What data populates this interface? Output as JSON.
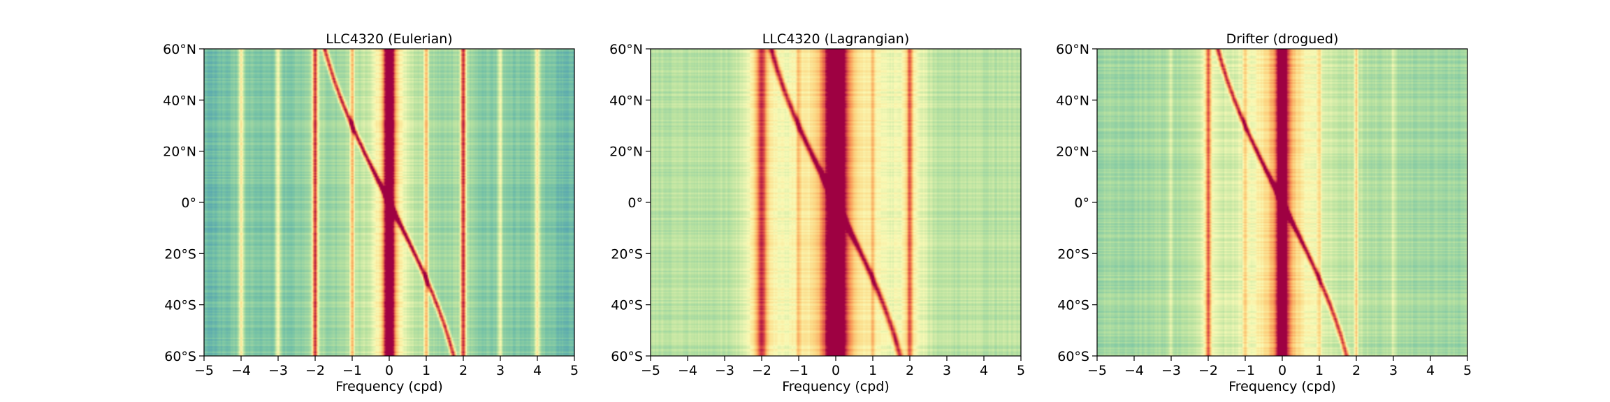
{
  "chart_data": [
    {
      "type": "heatmap",
      "title": "LLC4320 (Eulerian)",
      "xlabel": "Frequency (cpd)",
      "ylabel": "",
      "xlim": [
        -5,
        5
      ],
      "ylim": [
        -60,
        60
      ],
      "xticks": [
        -5,
        -4,
        -3,
        -2,
        -1,
        0,
        1,
        2,
        3,
        4,
        5
      ],
      "xtick_labels": [
        "−5",
        "−4",
        "−3",
        "−2",
        "−1",
        "0",
        "1",
        "2",
        "3",
        "4",
        "5"
      ],
      "yticks": [
        60,
        40,
        20,
        0,
        -20,
        -40,
        -60
      ],
      "ytick_labels": [
        "60°N",
        "40°N",
        "20°N",
        "0°",
        "20°S",
        "40°S",
        "60°S"
      ],
      "colormap": "Spectral_r",
      "background_level": 0.22,
      "bands": [
        {
          "kind": "vertical",
          "freq": 0,
          "width": 0.1,
          "level": 1.0,
          "halo": 0.45
        },
        {
          "kind": "vertical",
          "freq": -2,
          "width": 0.05,
          "level": 0.85,
          "halo": 0.22
        },
        {
          "kind": "vertical",
          "freq": 2,
          "width": 0.05,
          "level": 0.85,
          "halo": 0.22
        },
        {
          "kind": "vertical",
          "freq": -1,
          "width": 0.04,
          "level": 0.6,
          "halo": 0.15
        },
        {
          "kind": "vertical",
          "freq": 1,
          "width": 0.04,
          "level": 0.6,
          "halo": 0.15
        },
        {
          "kind": "vertical",
          "freq": -4,
          "width": 0.05,
          "level": 0.5,
          "halo": 0.12
        },
        {
          "kind": "vertical",
          "freq": 4,
          "width": 0.05,
          "level": 0.5,
          "halo": 0.12
        },
        {
          "kind": "vertical",
          "freq": -3,
          "width": 0.05,
          "level": 0.45,
          "halo": 0.1
        },
        {
          "kind": "vertical",
          "freq": 3,
          "width": 0.05,
          "level": 0.45,
          "halo": 0.1
        },
        {
          "kind": "inertial",
          "width": 0.05,
          "level": 0.9
        }
      ]
    },
    {
      "type": "heatmap",
      "title": "LLC4320 (Lagrangian)",
      "xlabel": "Frequency (cpd)",
      "ylabel": "",
      "xlim": [
        -5,
        5
      ],
      "ylim": [
        -60,
        60
      ],
      "xticks": [
        -5,
        -4,
        -3,
        -2,
        -1,
        0,
        1,
        2,
        3,
        4,
        5
      ],
      "xtick_labels": [
        "−5",
        "−4",
        "−3",
        "−2",
        "−1",
        "0",
        "1",
        "2",
        "3",
        "4",
        "5"
      ],
      "yticks": [
        60,
        40,
        20,
        0,
        -20,
        -40,
        -60
      ],
      "ytick_labels": [
        "60°N",
        "40°N",
        "20°N",
        "0°",
        "20°S",
        "40°S",
        "60°S"
      ],
      "colormap": "Spectral_r",
      "background_level": 0.38,
      "bands": [
        {
          "kind": "vertical",
          "freq": 0,
          "width": 0.18,
          "level": 1.0,
          "halo": 0.55
        },
        {
          "kind": "vertical",
          "freq": -2,
          "width": 0.1,
          "level": 0.8,
          "halo": 0.3
        },
        {
          "kind": "vertical",
          "freq": 2,
          "width": 0.06,
          "level": 0.75,
          "halo": 0.22
        },
        {
          "kind": "vertical",
          "freq": -1,
          "width": 0.04,
          "level": 0.55,
          "halo": 0.15
        },
        {
          "kind": "vertical",
          "freq": 1,
          "width": 0.04,
          "level": 0.55,
          "halo": 0.15
        },
        {
          "kind": "inertial",
          "width": 0.06,
          "level": 0.9
        }
      ]
    },
    {
      "type": "heatmap",
      "title": "Drifter (drogued)",
      "xlabel": "Frequency (cpd)",
      "ylabel": "",
      "xlim": [
        -5,
        5
      ],
      "ylim": [
        -60,
        60
      ],
      "xticks": [
        -5,
        -4,
        -3,
        -2,
        -1,
        0,
        1,
        2,
        3,
        4,
        5
      ],
      "xtick_labels": [
        "−5",
        "−4",
        "−3",
        "−2",
        "−1",
        "0",
        "1",
        "2",
        "3",
        "4",
        "5"
      ],
      "yticks": [
        60,
        40,
        20,
        0,
        -20,
        -40,
        -60
      ],
      "ytick_labels": [
        "60°N",
        "40°N",
        "20°N",
        "0°",
        "20°S",
        "40°S",
        "60°S"
      ],
      "colormap": "Spectral_r",
      "background_level": 0.33,
      "bands": [
        {
          "kind": "vertical",
          "freq": 0,
          "width": 0.1,
          "level": 1.0,
          "halo": 0.5
        },
        {
          "kind": "vertical",
          "freq": -2,
          "width": 0.05,
          "level": 0.75,
          "halo": 0.22
        },
        {
          "kind": "vertical",
          "freq": 2,
          "width": 0.03,
          "level": 0.6,
          "halo": 0.1
        },
        {
          "kind": "vertical",
          "freq": -1,
          "width": 0.04,
          "level": 0.5,
          "halo": 0.14
        },
        {
          "kind": "vertical",
          "freq": 1,
          "width": 0.04,
          "level": 0.5,
          "halo": 0.12
        },
        {
          "kind": "vertical",
          "freq": -3,
          "width": 0.03,
          "level": 0.45,
          "halo": 0.05
        },
        {
          "kind": "vertical",
          "freq": 3,
          "width": 0.03,
          "level": 0.45,
          "halo": 0.05
        },
        {
          "kind": "inertial",
          "width": 0.05,
          "level": 0.9
        }
      ]
    }
  ]
}
